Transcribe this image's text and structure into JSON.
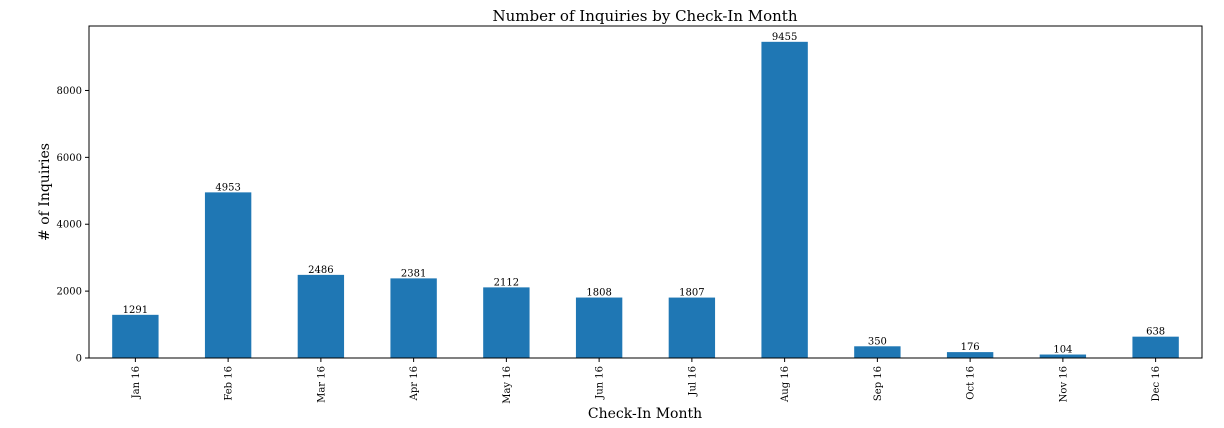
{
  "chart_data": {
    "type": "bar",
    "title": "Number of Inquiries by Check-In Month",
    "xlabel": "Check-In Month",
    "ylabel": "# of Inquiries",
    "categories": [
      "Jan 16",
      "Feb 16",
      "Mar 16",
      "Apr 16",
      "May 16",
      "Jun 16",
      "Jul 16",
      "Aug 16",
      "Sep 16",
      "Oct 16",
      "Nov 16",
      "Dec 16"
    ],
    "values": [
      1291,
      4953,
      2486,
      2381,
      2112,
      1808,
      1807,
      9455,
      350,
      176,
      104,
      638
    ],
    "data_labels": [
      "1291",
      "4953",
      "2486",
      "2381",
      "2112",
      "1808",
      "1807",
      "9455",
      "350",
      "176",
      "104",
      "638"
    ],
    "yticks": [
      0,
      2000,
      4000,
      6000,
      8000
    ],
    "ytick_labels": [
      "0",
      "2000",
      "4000",
      "6000",
      "8000"
    ],
    "ylim": [
      0,
      9928
    ],
    "grid": false,
    "legend": "none",
    "bar_color": "#1f77b4"
  }
}
